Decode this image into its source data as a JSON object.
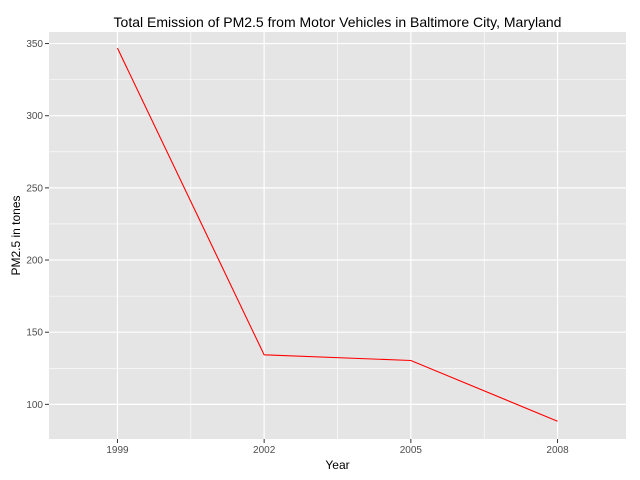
{
  "chart_data": {
    "type": "line",
    "title": "Total Emission of PM2.5 from Motor Vehicles in Baltimore City, Maryland",
    "xlabel": "Year",
    "ylabel": "PM2.5 in tones",
    "x": [
      1999,
      2002,
      2005,
      2008
    ],
    "x_tick_labels": [
      "1999",
      "2002",
      "2005",
      "2008"
    ],
    "y_ticks": [
      100,
      150,
      200,
      250,
      300,
      350
    ],
    "y_tick_labels": [
      "100",
      "150",
      "200",
      "250",
      "300",
      "350"
    ],
    "xlim": [
      1997.6,
      2009.4
    ],
    "ylim": [
      76,
      358
    ],
    "grid": true,
    "series": [
      {
        "values": [
          346.8,
          134.3,
          130.4,
          88.3
        ],
        "color": "#ff0000"
      }
    ],
    "panel_color": "#e5e5e5",
    "grid_color": "#ffffff"
  }
}
